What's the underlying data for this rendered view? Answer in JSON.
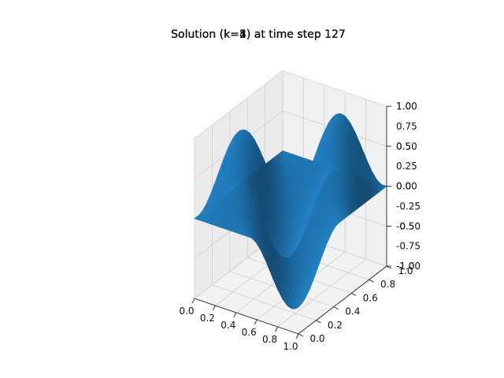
{
  "chart_data": {
    "type": "surface3d",
    "titles": [
      "Solution (k=1) at time step 127",
      "Solution (k=2) at time step 127",
      "Solution (k=3) at time step 127",
      "Solution (k=4) at time step 127",
      "Solution (k=5) at time step 127"
    ],
    "x_ticks": [
      "0.0",
      "0.2",
      "0.4",
      "0.6",
      "0.8",
      "1.0"
    ],
    "y_ticks": [
      "0.0",
      "0.2",
      "0.4",
      "0.6",
      "0.8",
      "1.0"
    ],
    "z_tick_sets": [
      [
        "-1.0",
        "-0.5",
        "0.0",
        "0.5",
        "1.0"
      ],
      [
        "-1.00",
        "-0.75",
        "-0.50",
        "-0.25",
        "0.00",
        "0.25",
        "0.50",
        "0.75",
        "1.00"
      ]
    ],
    "xlim": [
      0,
      1
    ],
    "ylim": [
      0,
      1
    ],
    "zlim": [
      -1,
      1
    ],
    "surface_function": "sin(2*pi*x)*sin(2*pi*y)",
    "grid": true,
    "surface_color": "#1f77b4"
  }
}
